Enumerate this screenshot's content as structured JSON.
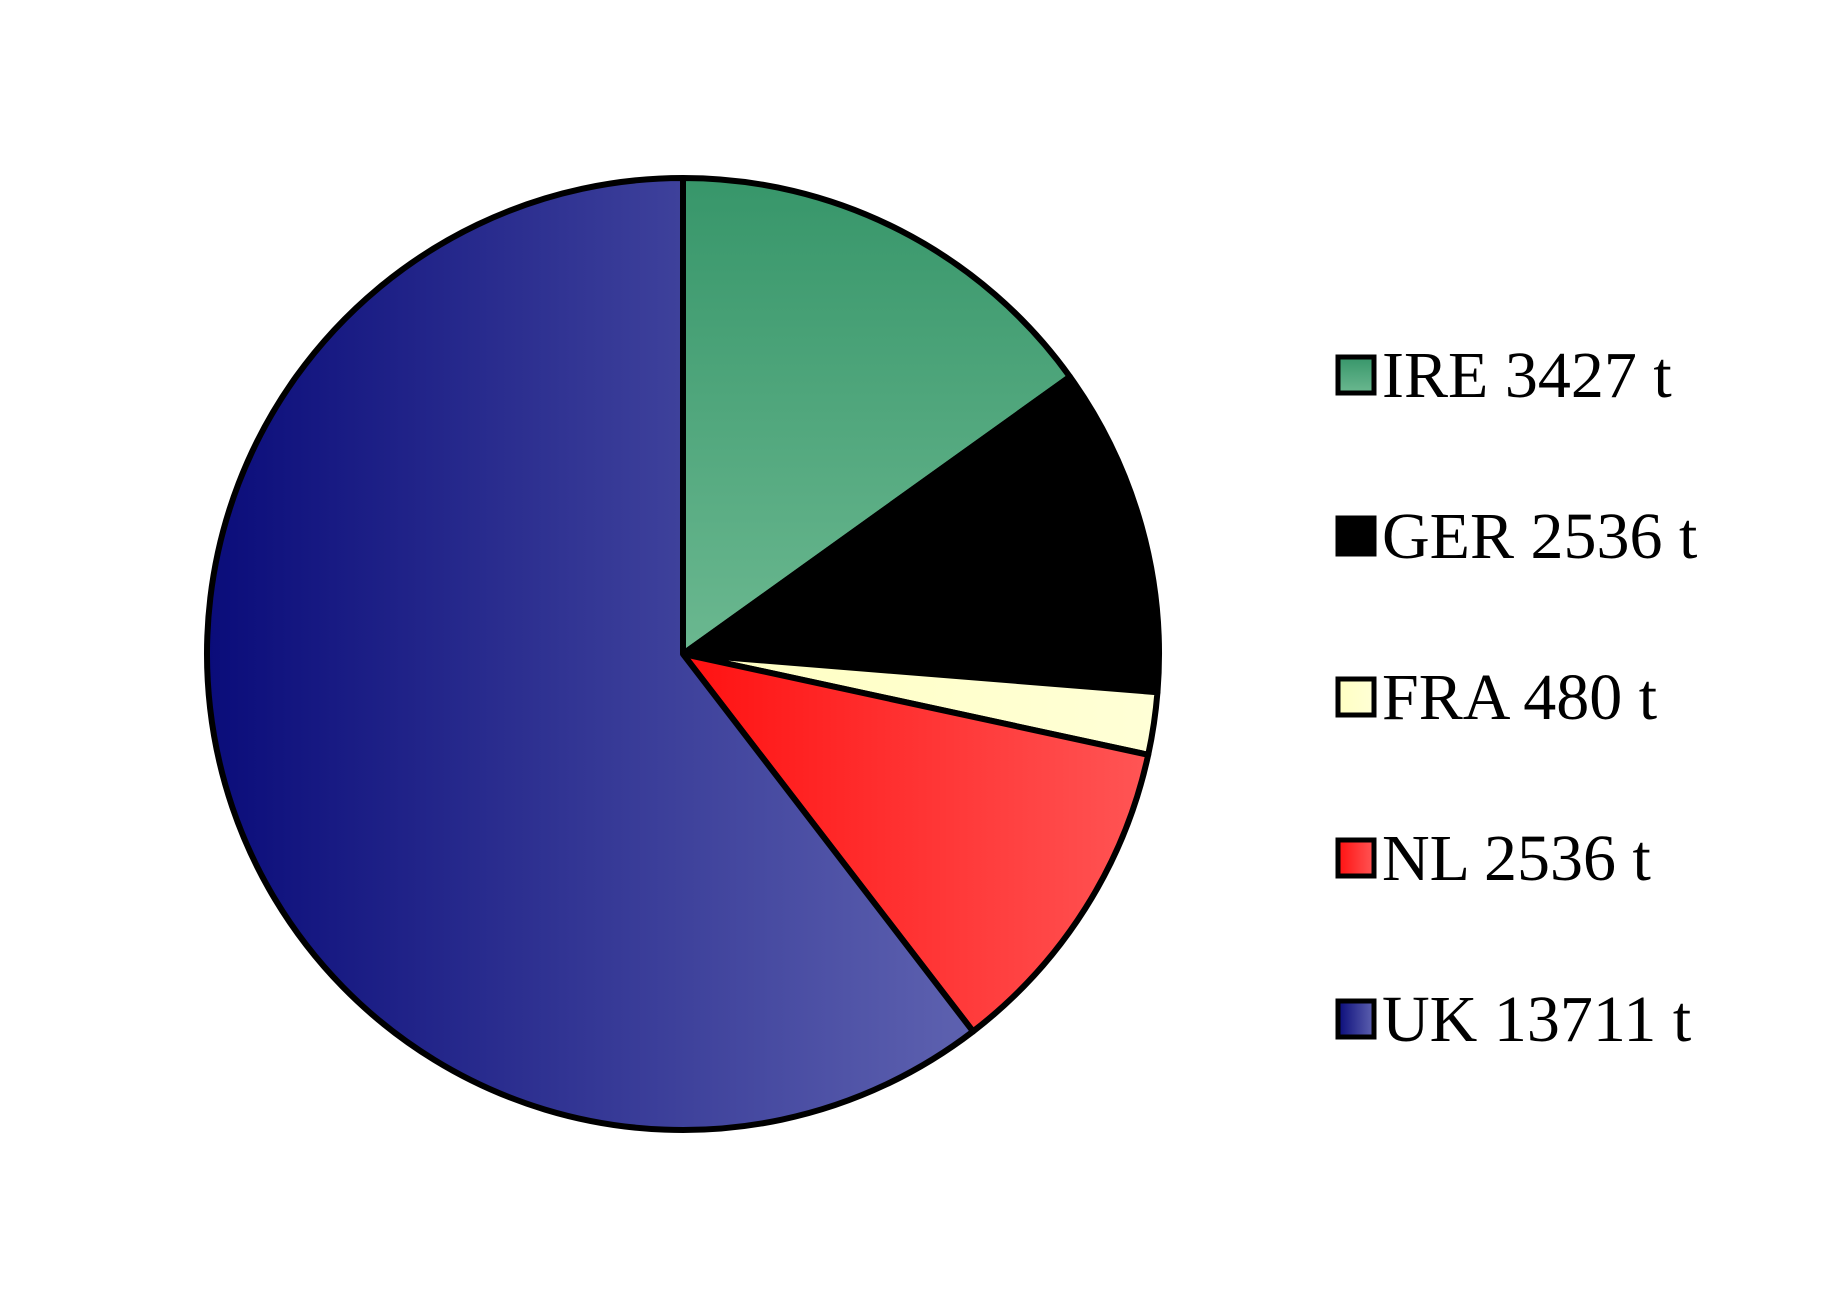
{
  "chart_data": {
    "type": "pie",
    "title": "",
    "unit": "t",
    "start_angle_deg": 0,
    "direction": "clockwise",
    "legend_placement": "right",
    "slices": [
      {
        "label": "IRE",
        "value": 3427,
        "legend_text": "IRE 3427 t",
        "color": "#4aa174",
        "color_light": "#6bb890",
        "color_dark": "#37966a"
      },
      {
        "label": "GER",
        "value": 2536,
        "legend_text": "GER 2536 t",
        "color": "#000000",
        "color_light": "#000000",
        "color_dark": "#000000"
      },
      {
        "label": "FRA",
        "value": 480,
        "legend_text": "FRA 480 t",
        "color": "#ffffcc",
        "color_light": "#ffffd6",
        "color_dark": "#ffffc2"
      },
      {
        "label": "NL",
        "value": 2536,
        "legend_text": "NL 2536 t",
        "color": "#ff3333",
        "color_light": "#ff5555",
        "color_dark": "#ff1111"
      },
      {
        "label": "UK",
        "value": 13711,
        "legend_text": "UK 13711 t",
        "color": "#3a3e96",
        "color_light": "#5e62b0",
        "color_dark": "#0a0c7a"
      }
    ]
  }
}
